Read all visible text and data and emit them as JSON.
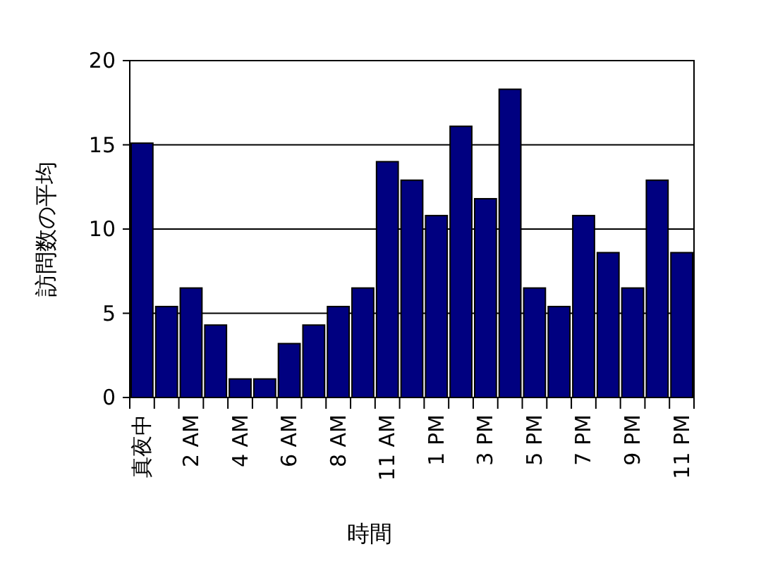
{
  "chart_data": {
    "type": "bar",
    "xlabel": "時間",
    "ylabel": "訪問数の平均",
    "categories": [
      "真夜中",
      null,
      "2 AM",
      null,
      "4 AM",
      null,
      "6 AM",
      null,
      "8 AM",
      null,
      "11 AM",
      null,
      "1 PM",
      null,
      "3 PM",
      null,
      "5 PM",
      null,
      "7 PM",
      null,
      "9 PM",
      null,
      "11 PM"
    ],
    "values": [
      15.1,
      5.4,
      6.5,
      4.3,
      1.1,
      1.1,
      3.2,
      4.3,
      5.4,
      6.5,
      14.0,
      12.9,
      10.8,
      16.1,
      11.8,
      18.3,
      6.5,
      5.4,
      10.8,
      8.6,
      6.5,
      12.9,
      8.6
    ],
    "color": "#000080",
    "ylim": [
      0,
      20
    ],
    "yticks": [
      0,
      5,
      10,
      15,
      20
    ],
    "grid": "y"
  }
}
